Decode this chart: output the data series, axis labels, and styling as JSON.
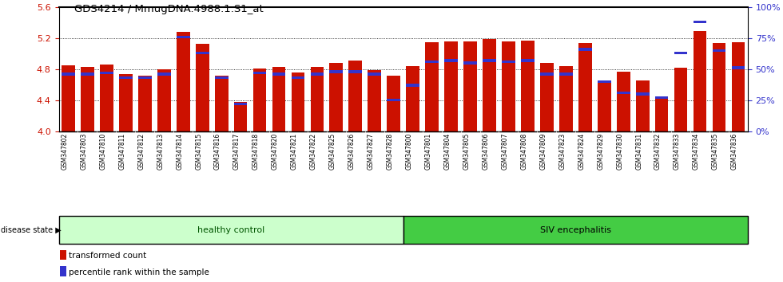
{
  "title": "GDS4214 / MmugDNA.4988.1.S1_at",
  "samples": [
    "GSM347802",
    "GSM347803",
    "GSM347810",
    "GSM347811",
    "GSM347812",
    "GSM347813",
    "GSM347814",
    "GSM347815",
    "GSM347816",
    "GSM347817",
    "GSM347818",
    "GSM347820",
    "GSM347821",
    "GSM347822",
    "GSM347825",
    "GSM347826",
    "GSM347827",
    "GSM347828",
    "GSM347800",
    "GSM347801",
    "GSM347804",
    "GSM347805",
    "GSM347806",
    "GSM347807",
    "GSM347808",
    "GSM347809",
    "GSM347823",
    "GSM347824",
    "GSM347829",
    "GSM347830",
    "GSM347831",
    "GSM347832",
    "GSM347833",
    "GSM347834",
    "GSM347835",
    "GSM347836"
  ],
  "transformed_count": [
    4.85,
    4.83,
    4.86,
    4.74,
    4.71,
    4.8,
    5.28,
    5.13,
    4.71,
    4.38,
    4.81,
    4.83,
    4.76,
    4.83,
    4.88,
    4.91,
    4.79,
    4.72,
    4.84,
    5.15,
    5.16,
    5.16,
    5.19,
    5.16,
    5.17,
    4.88,
    4.84,
    5.14,
    4.65,
    4.77,
    4.65,
    4.45,
    4.82,
    5.29,
    5.14,
    5.15
  ],
  "percentile_rank": [
    46,
    46,
    47,
    43,
    43,
    46,
    76,
    63,
    43,
    22,
    47,
    46,
    43,
    46,
    48,
    48,
    46,
    25,
    37,
    56,
    57,
    55,
    57,
    56,
    57,
    46,
    46,
    66,
    40,
    31,
    30,
    27,
    63,
    88,
    65,
    51
  ],
  "healthy_count": 18,
  "ylim_left": [
    4.0,
    5.6
  ],
  "ylim_right": [
    0,
    100
  ],
  "yticks_left": [
    4.0,
    4.4,
    4.8,
    5.2,
    5.6
  ],
  "yticks_right": [
    0,
    25,
    50,
    75,
    100
  ],
  "bar_color": "#cc1100",
  "blue_color": "#3333cc",
  "healthy_bg": "#ccffcc",
  "siv_bg": "#44cc44",
  "xtick_bg": "#cccccc",
  "label_color_left": "#cc1100",
  "label_color_right": "#3333cc",
  "legend_items": [
    "transformed count",
    "percentile rank within the sample"
  ]
}
